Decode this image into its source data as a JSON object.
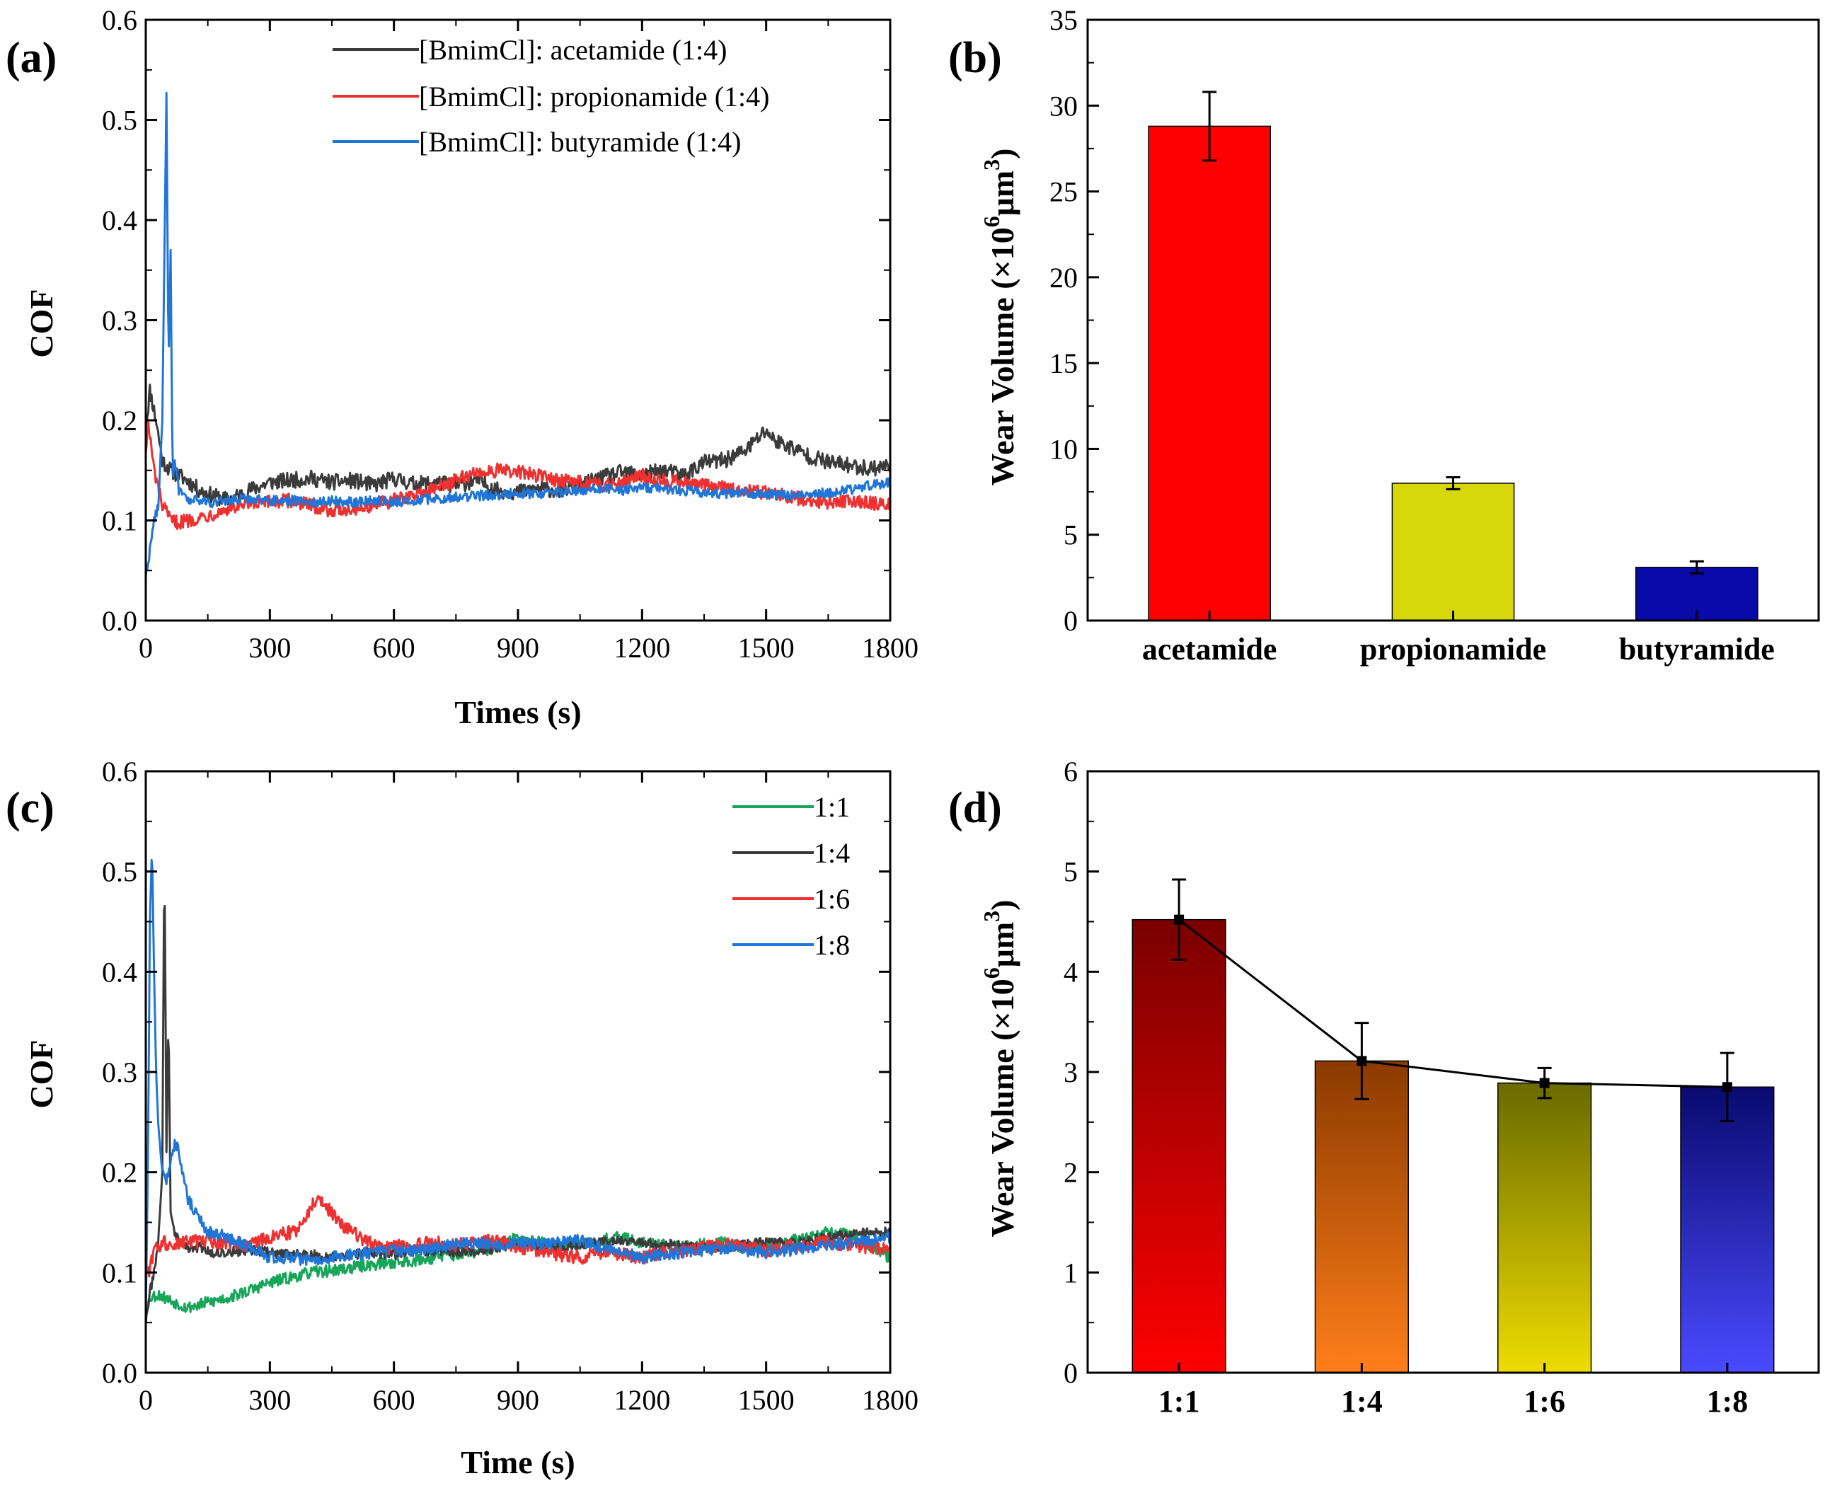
{
  "colors": {
    "acetamide": "#3b3b3b",
    "propionamide": "#ee3030",
    "butyramide": "#1f75d8",
    "ratio_1_1": "#17a55a",
    "ratio_1_4": "#3b3b3b",
    "ratio_1_6": "#ee3030",
    "ratio_1_8": "#1f75d8",
    "bar_acetamide": "#ff0000",
    "bar_propionamide": "#d7d70a",
    "bar_butyramide": "#0a0aa8"
  },
  "chart_data": [
    {
      "panel": "(a)",
      "type": "line",
      "xlabel": "Times (s)",
      "ylabel": "COF",
      "xlim": [
        0,
        1800
      ],
      "ylim": [
        0.0,
        0.6
      ],
      "xticks": [
        "0",
        "300",
        "600",
        "900",
        "1200",
        "1500",
        "1800"
      ],
      "yticks": [
        "0.0",
        "0.1",
        "0.2",
        "0.3",
        "0.4",
        "0.5",
        "0.6"
      ],
      "legend_position": "top-right",
      "series": [
        {
          "name": "[BmimCl]: acetamide (1:4)",
          "color_key": "acetamide",
          "x": [
            0,
            10,
            25,
            40,
            60,
            80,
            100,
            130,
            160,
            200,
            250,
            300,
            350,
            400,
            450,
            500,
            550,
            600,
            650,
            700,
            750,
            800,
            850,
            900,
            950,
            1000,
            1050,
            1100,
            1150,
            1200,
            1250,
            1300,
            1350,
            1400,
            1450,
            1500,
            1520,
            1550,
            1600,
            1650,
            1700,
            1750,
            1800
          ],
          "y": [
            0.19,
            0.23,
            0.2,
            0.16,
            0.15,
            0.145,
            0.14,
            0.13,
            0.125,
            0.12,
            0.13,
            0.138,
            0.14,
            0.142,
            0.138,
            0.14,
            0.135,
            0.142,
            0.136,
            0.138,
            0.135,
            0.14,
            0.13,
            0.128,
            0.132,
            0.13,
            0.135,
            0.142,
            0.148,
            0.145,
            0.15,
            0.145,
            0.158,
            0.16,
            0.17,
            0.19,
            0.18,
            0.175,
            0.165,
            0.158,
            0.155,
            0.152,
            0.155
          ],
          "noise": 0.008
        },
        {
          "name": "[BmimCl]: propionamide (1:4)",
          "color_key": "propionamide",
          "x": [
            0,
            5,
            20,
            40,
            60,
            80,
            100,
            150,
            200,
            250,
            300,
            350,
            400,
            450,
            500,
            550,
            600,
            650,
            700,
            750,
            800,
            850,
            900,
            950,
            1000,
            1050,
            1100,
            1150,
            1200,
            1250,
            1300,
            1350,
            1400,
            1450,
            1500,
            1550,
            1600,
            1650,
            1700,
            1750,
            1800
          ],
          "y": [
            0.17,
            0.2,
            0.15,
            0.115,
            0.1,
            0.098,
            0.1,
            0.105,
            0.112,
            0.115,
            0.118,
            0.12,
            0.115,
            0.11,
            0.112,
            0.115,
            0.12,
            0.125,
            0.132,
            0.14,
            0.148,
            0.15,
            0.148,
            0.145,
            0.14,
            0.138,
            0.135,
            0.14,
            0.145,
            0.14,
            0.138,
            0.135,
            0.132,
            0.13,
            0.128,
            0.125,
            0.12,
            0.118,
            0.12,
            0.118,
            0.115
          ],
          "noise": 0.007
        },
        {
          "name": "[BmimCl]: butyramide (1:4)",
          "color_key": "butyramide",
          "x": [
            0,
            10,
            20,
            30,
            40,
            50,
            55,
            60,
            65,
            70,
            80,
            90,
            100,
            130,
            160,
            200,
            250,
            300,
            350,
            400,
            450,
            500,
            550,
            600,
            650,
            700,
            750,
            800,
            850,
            900,
            950,
            1000,
            1050,
            1100,
            1150,
            1200,
            1250,
            1300,
            1350,
            1400,
            1450,
            1500,
            1550,
            1600,
            1650,
            1700,
            1750,
            1800
          ],
          "y": [
            0.045,
            0.07,
            0.1,
            0.115,
            0.2,
            0.527,
            0.25,
            0.37,
            0.14,
            0.16,
            0.13,
            0.125,
            0.12,
            0.12,
            0.118,
            0.12,
            0.122,
            0.12,
            0.12,
            0.118,
            0.12,
            0.118,
            0.12,
            0.118,
            0.12,
            0.122,
            0.123,
            0.125,
            0.125,
            0.128,
            0.126,
            0.128,
            0.13,
            0.132,
            0.13,
            0.133,
            0.132,
            0.13,
            0.128,
            0.127,
            0.128,
            0.126,
            0.125,
            0.126,
            0.128,
            0.13,
            0.135,
            0.138
          ],
          "noise": 0.005
        }
      ]
    },
    {
      "panel": "(b)",
      "type": "bar",
      "ylabel": "Wear Volume (×10",
      "ylabel_sup1": "6",
      "ylabel_mid": "μm",
      "ylabel_sup2": "3",
      "ylabel_end": ")",
      "ylim": [
        0,
        35
      ],
      "yticks": [
        "0",
        "5",
        "10",
        "15",
        "20",
        "25",
        "30",
        "35"
      ],
      "categories": [
        "acetamide",
        "propionamide",
        "butyramide"
      ],
      "values": [
        28.8,
        8.0,
        3.1
      ],
      "errors": [
        2.0,
        0.35,
        0.35
      ],
      "bar_color_keys": [
        "bar_acetamide",
        "bar_propionamide",
        "bar_butyramide"
      ]
    },
    {
      "panel": "(c)",
      "type": "line",
      "xlabel": "Time (s)",
      "ylabel": "COF",
      "xlim": [
        0,
        1800
      ],
      "ylim": [
        0.0,
        0.6
      ],
      "xticks": [
        "0",
        "300",
        "600",
        "900",
        "1200",
        "1500",
        "1800"
      ],
      "yticks": [
        "0.0",
        "0.1",
        "0.2",
        "0.3",
        "0.4",
        "0.5",
        "0.6"
      ],
      "legend_position": "top-right",
      "series": [
        {
          "name": "1:1",
          "color_key": "ratio_1_1",
          "x": [
            0,
            10,
            30,
            60,
            100,
            150,
            200,
            250,
            300,
            350,
            400,
            450,
            500,
            550,
            600,
            650,
            700,
            750,
            800,
            850,
            900,
            950,
            1000,
            1050,
            1100,
            1150,
            1200,
            1250,
            1300,
            1350,
            1400,
            1450,
            1500,
            1550,
            1600,
            1650,
            1700,
            1750,
            1800
          ],
          "y": [
            0.06,
            0.075,
            0.078,
            0.072,
            0.065,
            0.07,
            0.075,
            0.082,
            0.09,
            0.095,
            0.1,
            0.102,
            0.105,
            0.108,
            0.11,
            0.112,
            0.115,
            0.118,
            0.12,
            0.125,
            0.135,
            0.13,
            0.128,
            0.13,
            0.132,
            0.135,
            0.13,
            0.128,
            0.125,
            0.128,
            0.13,
            0.125,
            0.128,
            0.13,
            0.135,
            0.14,
            0.138,
            0.125,
            0.115
          ],
          "noise": 0.006
        },
        {
          "name": "1:4",
          "color_key": "ratio_1_4",
          "x": [
            0,
            10,
            20,
            30,
            40,
            45,
            50,
            55,
            60,
            70,
            80,
            100,
            130,
            160,
            200,
            250,
            300,
            350,
            400,
            450,
            500,
            550,
            600,
            650,
            700,
            750,
            800,
            850,
            900,
            950,
            1000,
            1050,
            1100,
            1150,
            1200,
            1250,
            1300,
            1350,
            1400,
            1450,
            1500,
            1550,
            1600,
            1650,
            1700,
            1750,
            1800
          ],
          "y": [
            0.05,
            0.08,
            0.1,
            0.13,
            0.2,
            0.527,
            0.22,
            0.36,
            0.16,
            0.14,
            0.13,
            0.125,
            0.125,
            0.12,
            0.12,
            0.122,
            0.12,
            0.118,
            0.118,
            0.115,
            0.118,
            0.12,
            0.118,
            0.12,
            0.122,
            0.12,
            0.122,
            0.125,
            0.128,
            0.126,
            0.125,
            0.128,
            0.13,
            0.132,
            0.13,
            0.128,
            0.127,
            0.125,
            0.125,
            0.128,
            0.13,
            0.13,
            0.132,
            0.135,
            0.138,
            0.14,
            0.14
          ],
          "noise": 0.005
        },
        {
          "name": "1:6",
          "color_key": "ratio_1_6",
          "x": [
            0,
            10,
            20,
            40,
            70,
            100,
            150,
            200,
            250,
            300,
            350,
            380,
            400,
            420,
            450,
            480,
            520,
            560,
            600,
            650,
            700,
            750,
            800,
            850,
            900,
            950,
            1000,
            1050,
            1100,
            1150,
            1200,
            1250,
            1300,
            1350,
            1400,
            1450,
            1500,
            1550,
            1600,
            1650,
            1700,
            1750,
            1800
          ],
          "y": [
            0.095,
            0.105,
            0.12,
            0.13,
            0.128,
            0.13,
            0.132,
            0.13,
            0.128,
            0.135,
            0.14,
            0.145,
            0.168,
            0.172,
            0.16,
            0.145,
            0.135,
            0.125,
            0.125,
            0.128,
            0.13,
            0.128,
            0.13,
            0.132,
            0.125,
            0.12,
            0.118,
            0.115,
            0.12,
            0.118,
            0.115,
            0.12,
            0.122,
            0.125,
            0.128,
            0.125,
            0.122,
            0.125,
            0.128,
            0.13,
            0.128,
            0.125,
            0.125
          ],
          "noise": 0.007
        },
        {
          "name": "1:8",
          "color_key": "ratio_1_8",
          "x": [
            0,
            5,
            10,
            15,
            20,
            25,
            30,
            40,
            50,
            60,
            70,
            80,
            90,
            100,
            120,
            150,
            200,
            250,
            300,
            350,
            400,
            450,
            500,
            550,
            600,
            650,
            700,
            750,
            800,
            850,
            900,
            950,
            1000,
            1050,
            1100,
            1150,
            1200,
            1250,
            1300,
            1350,
            1400,
            1450,
            1500,
            1550,
            1600,
            1650,
            1700,
            1750,
            1800
          ],
          "y": [
            0.06,
            0.2,
            0.45,
            0.527,
            0.4,
            0.3,
            0.25,
            0.2,
            0.19,
            0.21,
            0.23,
            0.22,
            0.2,
            0.175,
            0.16,
            0.14,
            0.135,
            0.125,
            0.115,
            0.115,
            0.112,
            0.115,
            0.118,
            0.12,
            0.122,
            0.122,
            0.125,
            0.128,
            0.13,
            0.128,
            0.13,
            0.128,
            0.13,
            0.132,
            0.125,
            0.12,
            0.115,
            0.118,
            0.12,
            0.122,
            0.125,
            0.122,
            0.12,
            0.122,
            0.125,
            0.128,
            0.13,
            0.132,
            0.135
          ],
          "noise": 0.006
        }
      ]
    },
    {
      "panel": "(d)",
      "type": "bar",
      "ylabel": "Wear Volume (×10",
      "ylabel_sup1": "6",
      "ylabel_mid": "μm",
      "ylabel_sup2": "3",
      "ylabel_end": ")",
      "ylim": [
        0,
        6
      ],
      "yticks": [
        "0",
        "1",
        "2",
        "3",
        "4",
        "5",
        "6"
      ],
      "categories": [
        "1:1",
        "1:4",
        "1:6",
        "1:8"
      ],
      "values": [
        4.52,
        3.11,
        2.89,
        2.85
      ],
      "errors": [
        0.4,
        0.38,
        0.15,
        0.34
      ],
      "gradients": [
        [
          "#7a0000",
          "#ff0000"
        ],
        [
          "#8b3a00",
          "#ff7e1a"
        ],
        [
          "#6a6a00",
          "#eedc00"
        ],
        [
          "#0a0a70",
          "#4a4aff"
        ]
      ],
      "trend_line": true
    }
  ]
}
